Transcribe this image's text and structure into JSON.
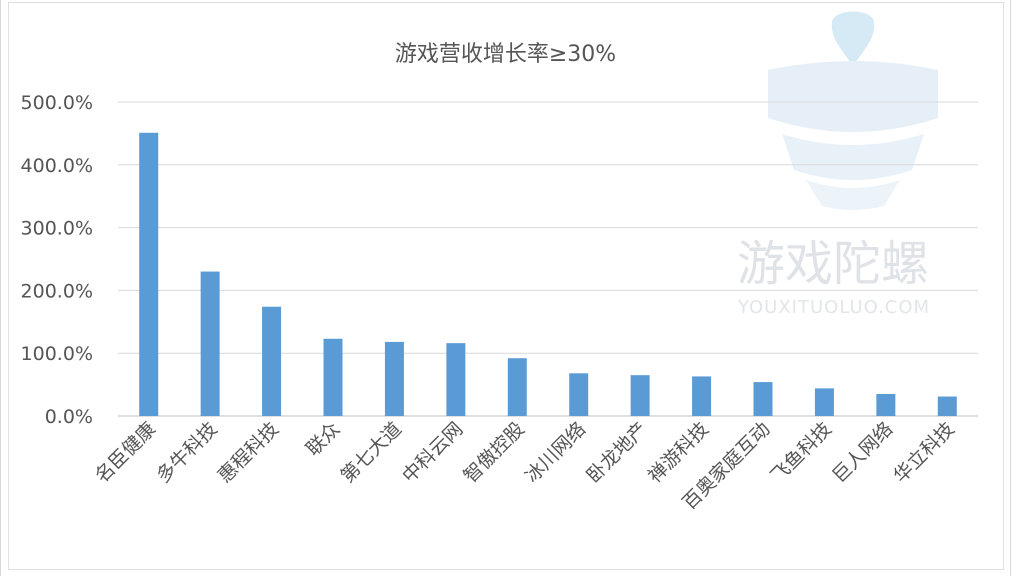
{
  "chart_data": {
    "type": "bar",
    "title": "游戏营收增长率≥30%",
    "xlabel": "",
    "ylabel": "",
    "ylim": [
      0,
      500
    ],
    "y_tick_values": [
      0,
      100,
      200,
      300,
      400,
      500
    ],
    "y_tick_labels": [
      "0.0%",
      "100.0%",
      "200.0%",
      "300.0%",
      "400.0%",
      "500.0%"
    ],
    "grid": true,
    "bar_color": "#5b9bd5",
    "categories": [
      "名臣健康",
      "多牛科技",
      "惠程科技",
      "联众",
      "第七大道",
      "中科云网",
      "智傲控股",
      "冰川网络",
      "卧龙地产",
      "禅游科技",
      "百奥家庭互动",
      "飞鱼科技",
      "巨人网络",
      "华立科技"
    ],
    "values": [
      451,
      230,
      174,
      123,
      118,
      116,
      92,
      68,
      65,
      63,
      54,
      44,
      35,
      31
    ]
  },
  "watermark": {
    "brand": "游戏陀螺",
    "url": "YOUXITUOLUO.COM"
  }
}
